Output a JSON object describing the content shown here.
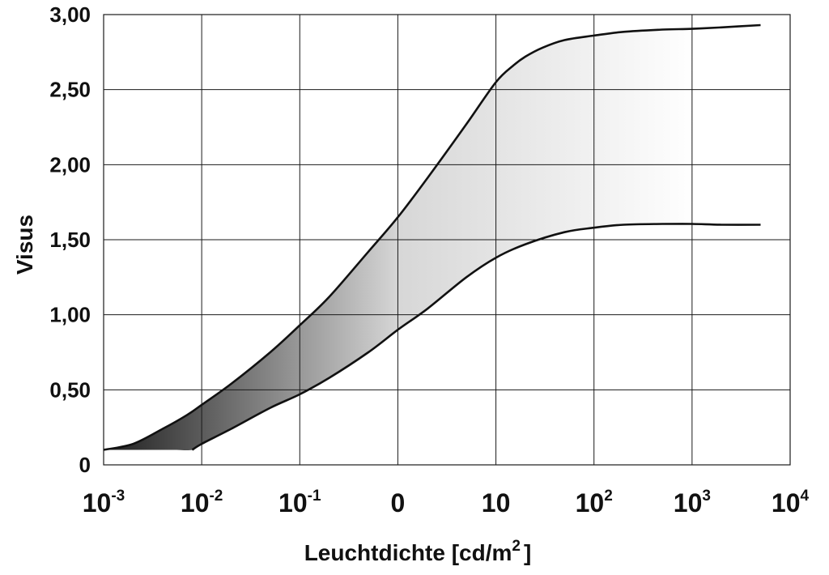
{
  "chart_data": {
    "type": "area",
    "title": "",
    "xlabel": "Leuchtdichte [cd/m",
    "xlabel_sup": "2",
    "xlabel_suffix": "]",
    "ylabel": "Visus",
    "x_scale": "log",
    "xlim": [
      0.001,
      10000
    ],
    "ylim": [
      0,
      3.0
    ],
    "grid": true,
    "x_ticks": [
      {
        "value": 0.001,
        "base": "10",
        "exp": "-3"
      },
      {
        "value": 0.01,
        "base": "10",
        "exp": "-2"
      },
      {
        "value": 0.1,
        "base": "10",
        "exp": "-1"
      },
      {
        "value": 1,
        "base": "0",
        "exp": ""
      },
      {
        "value": 10,
        "base": "10",
        "exp": ""
      },
      {
        "value": 100,
        "base": "10",
        "exp": "2"
      },
      {
        "value": 1000,
        "base": "10",
        "exp": "3"
      },
      {
        "value": 10000,
        "base": "10",
        "exp": "4"
      }
    ],
    "y_ticks": [
      {
        "value": 0,
        "label": "0"
      },
      {
        "value": 0.5,
        "label": "0,50"
      },
      {
        "value": 1.0,
        "label": "1,00"
      },
      {
        "value": 1.5,
        "label": "1,50"
      },
      {
        "value": 2.0,
        "label": "2,00"
      },
      {
        "value": 2.5,
        "label": "2,50"
      },
      {
        "value": 3.0,
        "label": "3,00"
      }
    ],
    "series": [
      {
        "role": "upper",
        "x": [
          0.001,
          0.002,
          0.004,
          0.007,
          0.01,
          0.02,
          0.05,
          0.1,
          0.2,
          0.5,
          1,
          2,
          5,
          10,
          15,
          20,
          30,
          50,
          100,
          200,
          500,
          1000,
          2000,
          5000
        ],
        "y": [
          0.1,
          0.14,
          0.24,
          0.33,
          0.4,
          0.54,
          0.75,
          0.93,
          1.12,
          1.42,
          1.65,
          1.91,
          2.27,
          2.55,
          2.66,
          2.72,
          2.78,
          2.83,
          2.86,
          2.885,
          2.9,
          2.905,
          2.915,
          2.93
        ]
      },
      {
        "role": "lower",
        "x": [
          0.001,
          0.002,
          0.005,
          0.008,
          0.01,
          0.02,
          0.05,
          0.1,
          0.2,
          0.5,
          1,
          2,
          5,
          10,
          20,
          50,
          100,
          200,
          500,
          1000,
          2000,
          5000
        ],
        "y": [
          0.1,
          0.1,
          0.1,
          0.1,
          0.14,
          0.24,
          0.38,
          0.47,
          0.58,
          0.75,
          0.9,
          1.04,
          1.25,
          1.38,
          1.47,
          1.55,
          1.58,
          1.6,
          1.605,
          1.605,
          1.6,
          1.6
        ]
      }
    ],
    "fill": {
      "dark": "#1e1e1e",
      "light": "#ffffff"
    }
  }
}
